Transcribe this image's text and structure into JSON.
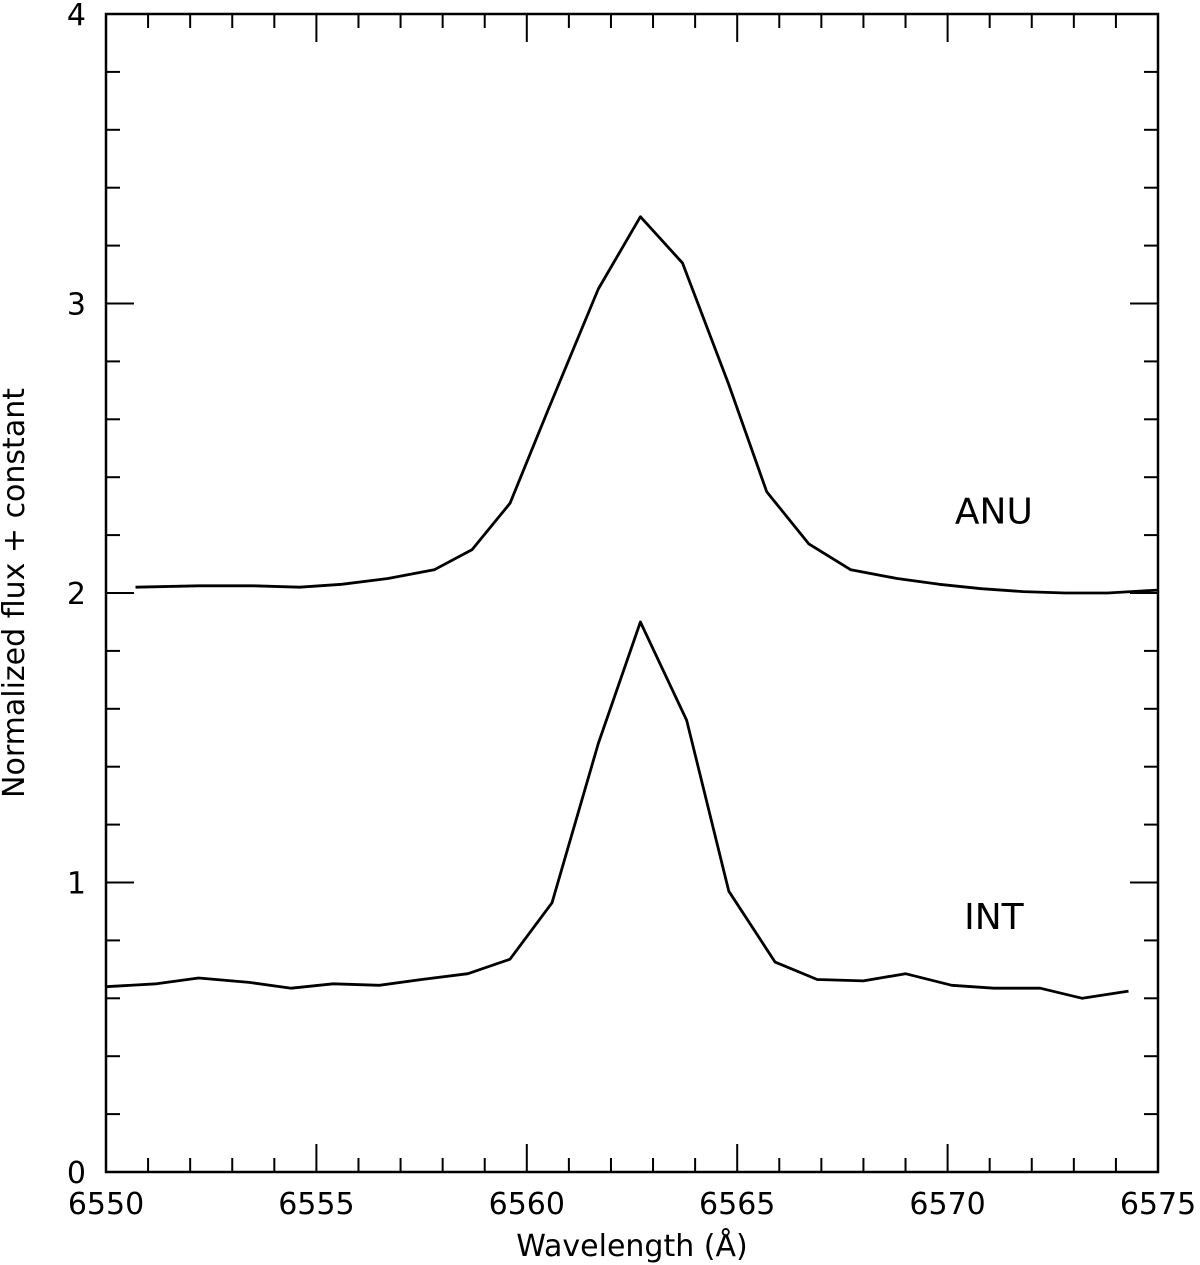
{
  "chart_data": {
    "type": "line",
    "title": "",
    "xlabel": "Wavelength (Å)",
    "ylabel": "Normalized flux + constant",
    "xlim": [
      6550,
      6575
    ],
    "ylim": [
      0,
      4
    ],
    "x_major_ticks": [
      6550,
      6555,
      6560,
      6565,
      6570,
      6575
    ],
    "x_tick_labels": [
      "6550",
      "6555",
      "6560",
      "6565",
      "6570",
      "6575"
    ],
    "x_minor_step": 1,
    "y_major_ticks": [
      0,
      1,
      2,
      3,
      4
    ],
    "y_tick_labels": [
      "0",
      "1",
      "2",
      "3",
      "4"
    ],
    "y_minor_step": 0.2,
    "grid": false,
    "line_color": "#000000",
    "series": [
      {
        "name": "ANU",
        "x": [
          6550.7,
          6552.2,
          6553.5,
          6554.6,
          6555.6,
          6556.7,
          6557.8,
          6558.7,
          6559.6,
          6560.5,
          6561.7,
          6562.7,
          6563.7,
          6564.8,
          6565.7,
          6566.7,
          6567.7,
          6568.8,
          6569.8,
          6570.8,
          6571.8,
          6572.8,
          6573.8,
          6575.0
        ],
        "y": [
          2.02,
          2.025,
          2.025,
          2.02,
          2.03,
          2.05,
          2.08,
          2.15,
          2.31,
          2.63,
          3.05,
          3.3,
          3.14,
          2.72,
          2.35,
          2.17,
          2.08,
          2.05,
          2.03,
          2.015,
          2.005,
          2.0,
          2.0,
          2.01
        ]
      },
      {
        "name": "INT",
        "x": [
          6550.0,
          6551.2,
          6552.2,
          6553.4,
          6554.4,
          6555.4,
          6556.5,
          6557.5,
          6558.6,
          6559.6,
          6560.6,
          6561.7,
          6562.7,
          6563.8,
          6564.8,
          6565.9,
          6566.9,
          6568.0,
          6569.0,
          6570.1,
          6571.1,
          6572.2,
          6573.2,
          6574.3
        ],
        "y": [
          0.64,
          0.65,
          0.67,
          0.655,
          0.635,
          0.65,
          0.645,
          0.665,
          0.685,
          0.735,
          0.93,
          1.48,
          1.9,
          1.56,
          0.97,
          0.725,
          0.665,
          0.66,
          0.685,
          0.645,
          0.635,
          0.635,
          0.6,
          0.625
        ]
      }
    ],
    "annotations": [
      {
        "text": "ANU",
        "x": 6571.1,
        "y": 2.24
      },
      {
        "text": "INT",
        "x": 6571.1,
        "y": 0.84
      }
    ]
  }
}
